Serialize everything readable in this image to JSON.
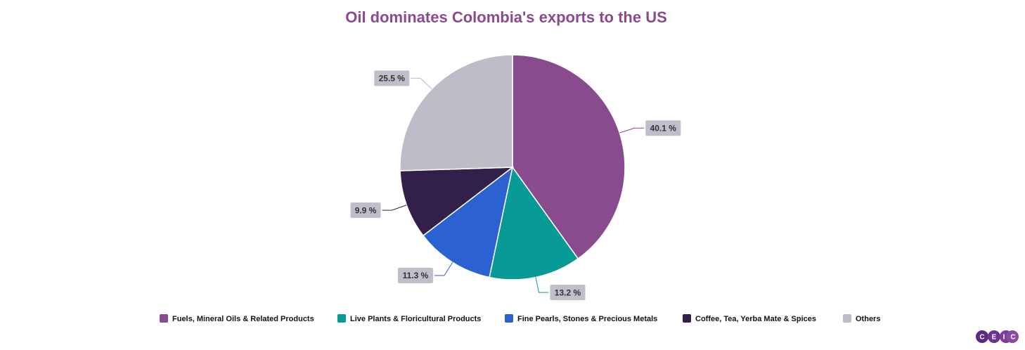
{
  "chart_data": {
    "type": "pie",
    "title": "Oil dominates Colombia's exports to the US",
    "categories": [
      "Fuels, Mineral Oils & Related Products",
      "Live Plants & Floricultural Products",
      "Fine Pearls, Stones & Precious Metals",
      "Coffee, Tea, Yerba Mate & Spices",
      "Others"
    ],
    "values": [
      40.1,
      13.2,
      11.3,
      9.9,
      25.5
    ],
    "value_labels": [
      "40.1 %",
      "13.2 %",
      "11.3 %",
      "9.9 %",
      "25.5 %"
    ],
    "colors": [
      "#884b8e",
      "#079a97",
      "#2b61d1",
      "#33204a",
      "#bdbdca"
    ],
    "legend": "bottom"
  },
  "logo": [
    "C",
    "E",
    "I",
    "C"
  ]
}
